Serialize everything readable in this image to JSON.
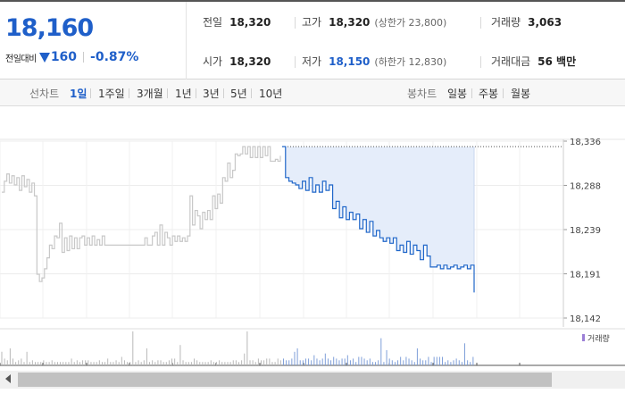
{
  "quote": {
    "price": "18,160",
    "change_label": "전일대비",
    "change_value": "160",
    "change_rate": "-0.87%",
    "direction": "down",
    "down_color": "#1f5fc9"
  },
  "info": {
    "prev_close": {
      "label": "전일",
      "value": "18,320"
    },
    "open": {
      "label": "시가",
      "value": "18,320"
    },
    "high": {
      "label": "고가",
      "value": "18,320",
      "sub": "(상한가 23,800)"
    },
    "low": {
      "label": "저가",
      "value": "18,150",
      "sub": "(하한가 12,830)"
    },
    "volume": {
      "label": "거래량",
      "value": "3,063"
    },
    "amount": {
      "label": "거래대금",
      "value": "56 백만"
    }
  },
  "tabs": {
    "line_label": "선차트",
    "line_tabs": [
      "1일",
      "1주일",
      "3개월",
      "1년",
      "3년",
      "5년",
      "10년"
    ],
    "active_index": 0,
    "candle_label": "봉차트",
    "candle_tabs": [
      "일봉",
      "주봉",
      "월봉"
    ]
  },
  "chart_data": {
    "type": "line",
    "y_ticks": [
      "18,336",
      "18,288",
      "18,239",
      "18,191",
      "18,142"
    ],
    "ylim": [
      18142,
      18336
    ],
    "prev_close": 18320,
    "legend": "거래량",
    "series": [
      {
        "style": "gray",
        "color": "#c8c8c8",
        "values": [
          18280,
          18292,
          18300,
          18290,
          18298,
          18288,
          18296,
          18282,
          18298,
          18286,
          18294,
          18280,
          18290,
          18276,
          18190,
          18182,
          18186,
          18196,
          18208,
          18222,
          18218,
          18232,
          18230,
          18246,
          18214,
          18230,
          18216,
          18232,
          18218,
          18230,
          18218,
          18230,
          18232,
          18222,
          18230,
          18222,
          18232,
          18222,
          18228,
          18222,
          18232,
          18222,
          18222,
          18222,
          18222,
          18222,
          18222,
          18222,
          18222,
          18222,
          18222,
          18222,
          18222,
          18222,
          18222,
          18222,
          18222,
          18230,
          18222,
          18222,
          18232,
          18236,
          18222,
          18244,
          18222,
          18236,
          18230,
          18222,
          18232,
          18226,
          18232,
          18226,
          18230,
          18226,
          18232,
          18276,
          18244,
          18260,
          18254,
          18240,
          18258,
          18250,
          18260,
          18250,
          18276,
          18262,
          18278,
          18268,
          18296,
          18292,
          18312,
          18296,
          18304,
          18322,
          18320,
          18322,
          18330,
          18322,
          18330,
          18318,
          18330,
          18318,
          18330,
          18318,
          18330,
          18320,
          18330,
          18314,
          18314,
          18316,
          18314,
          18320
        ]
      },
      {
        "style": "blue",
        "color": "#1f66c9",
        "values": [
          18330,
          18296,
          18292,
          18290,
          18288,
          18284,
          18292,
          18282,
          18296,
          18280,
          18288,
          18280,
          18292,
          18282,
          18288,
          18262,
          18270,
          18252,
          18264,
          18250,
          18258,
          18250,
          18256,
          18240,
          18250,
          18236,
          18248,
          18232,
          18238,
          18230,
          18226,
          18230,
          18224,
          18230,
          18216,
          18222,
          18214,
          18226,
          18212,
          18222,
          18216,
          18206,
          18222,
          18210,
          18198,
          18198,
          18200,
          18196,
          18200,
          18196,
          18198,
          18200,
          18196,
          18198,
          18200,
          18196,
          18200,
          18170
        ]
      }
    ],
    "volume": [
      8,
      4,
      3,
      10,
      4,
      2,
      3,
      4,
      2,
      8,
      2,
      3,
      2,
      2,
      2,
      3,
      2,
      2,
      3,
      2,
      2,
      2,
      2,
      2,
      2,
      4,
      2,
      3,
      2,
      3,
      3,
      3,
      2,
      2,
      2,
      3,
      2,
      2,
      4,
      2,
      2,
      3,
      2,
      5,
      3,
      2,
      2,
      20,
      2,
      3,
      2,
      3,
      10,
      2,
      3,
      2,
      3,
      3,
      2,
      2,
      3,
      4,
      4,
      2,
      12,
      3,
      2,
      2,
      2,
      4,
      3,
      2,
      2,
      2,
      2,
      3,
      2,
      2,
      3,
      2,
      2,
      2,
      2,
      3,
      3,
      2,
      3,
      7,
      20,
      3,
      3,
      2,
      4,
      3,
      3,
      4,
      4,
      2,
      2,
      4,
      3,
      4,
      3,
      3,
      4,
      8,
      10,
      3,
      3,
      4,
      4,
      3,
      6,
      4,
      3,
      4,
      7,
      4,
      3,
      5,
      4,
      3,
      4,
      4,
      6,
      3,
      4,
      2,
      5,
      5,
      4,
      3,
      4,
      2,
      2,
      3,
      16,
      2,
      9,
      4,
      3,
      2,
      3,
      5,
      3,
      5,
      4,
      3,
      2,
      10,
      4,
      3,
      3,
      5,
      2,
      5,
      5,
      5,
      5,
      2,
      3,
      2,
      3,
      4,
      3,
      2,
      13,
      3,
      2,
      5
    ]
  }
}
